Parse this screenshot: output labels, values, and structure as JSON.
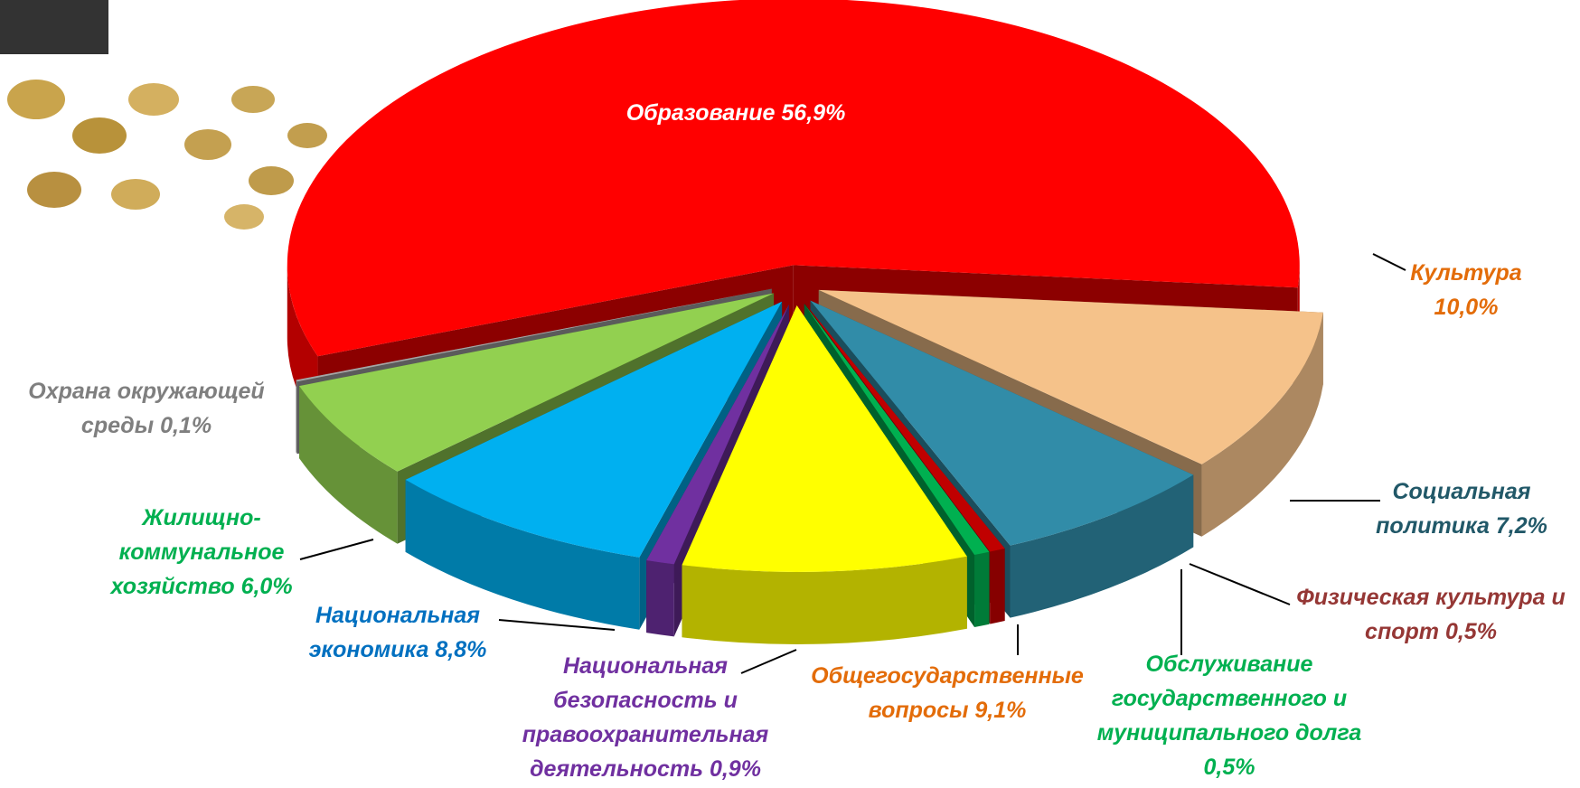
{
  "chart_data": {
    "type": "pie",
    "categories": [
      "Образование",
      "Культура",
      "Социальная политика",
      "Физическая культура и спорт",
      "Обслуживание государственного и муниципального долга",
      "Общегосударственные вопросы",
      "Национальная безопасность и правоохранительная деятельность",
      "Национальная экономика",
      "Жилищно-коммунальное хозяйство",
      "Охрана окружающей среды"
    ],
    "values": [
      56.9,
      10.0,
      7.2,
      0.5,
      0.5,
      9.1,
      0.9,
      8.8,
      6.0,
      0.1
    ],
    "value_labels": [
      "56,9%",
      "10,0%",
      "7,2%",
      "0,5%",
      "0,5%",
      "9,1%",
      "0,9%",
      "8,8%",
      "6,0%",
      "0,1%"
    ],
    "colors": [
      "#ff0000",
      "#f5c28a",
      "#318ca8",
      "#c00000",
      "#00b050",
      "#ffff00",
      "#7030a0",
      "#00b0f0",
      "#92d050",
      "#a6a6a6"
    ],
    "label_colors": [
      "#ffffff",
      "#e36c09",
      "#215868",
      "#953735",
      "#00b050",
      "#e36c09",
      "#7030a0",
      "#0070c0",
      "#00b050",
      "#7f7f7f"
    ]
  }
}
